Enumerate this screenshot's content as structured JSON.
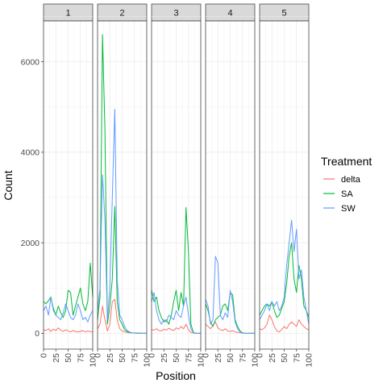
{
  "chart_data": {
    "type": "line",
    "xlabel": "Position",
    "ylabel": "Count",
    "xlim": [
      0,
      100
    ],
    "ylim": [
      -350,
      6900
    ],
    "x_ticks": [
      0,
      25,
      50,
      75,
      100
    ],
    "x_tick_labels": [
      "0",
      "25",
      "50",
      "75",
      "100"
    ],
    "y_ticks": [
      0,
      2000,
      4000,
      6000
    ],
    "y_tick_labels": [
      "0",
      "2000",
      "4000",
      "6000"
    ],
    "grid": true,
    "legend": {
      "title": "Treatment",
      "position": "right",
      "entries": [
        {
          "name": "delta",
          "color": "#F8766D"
        },
        {
          "name": "SA",
          "color": "#00BA38"
        },
        {
          "name": "SW",
          "color": "#619CFF"
        }
      ]
    },
    "facets": [
      {
        "label": "1",
        "series": [
          {
            "name": "delta",
            "x": [
              0,
              5,
              10,
              15,
              20,
              25,
              30,
              35,
              40,
              45,
              50,
              55,
              60,
              65,
              70,
              75,
              80,
              85,
              90,
              95,
              100
            ],
            "values": [
              80,
              60,
              100,
              40,
              90,
              60,
              120,
              70,
              40,
              80,
              50,
              30,
              60,
              40,
              30,
              40,
              60,
              30,
              50,
              40,
              30
            ]
          },
          {
            "name": "SA",
            "x": [
              0,
              5,
              10,
              15,
              20,
              25,
              30,
              35,
              40,
              45,
              50,
              55,
              60,
              65,
              70,
              75,
              80,
              85,
              90,
              95,
              100
            ],
            "values": [
              700,
              650,
              720,
              800,
              550,
              400,
              600,
              450,
              350,
              500,
              950,
              900,
              400,
              600,
              800,
              1000,
              650,
              500,
              700,
              1550,
              800
            ]
          },
          {
            "name": "SW",
            "x": [
              0,
              5,
              10,
              15,
              20,
              25,
              30,
              35,
              40,
              45,
              50,
              55,
              60,
              65,
              70,
              75,
              80,
              85,
              90,
              95,
              100
            ],
            "values": [
              500,
              600,
              400,
              800,
              500,
              400,
              350,
              300,
              450,
              650,
              500,
              350,
              300,
              400,
              650,
              500,
              300,
              350,
              250,
              400,
              500
            ]
          }
        ]
      },
      {
        "label": "2",
        "series": [
          {
            "name": "delta",
            "x": [
              0,
              5,
              10,
              15,
              20,
              25,
              30,
              35,
              40,
              45,
              50,
              55,
              60,
              65,
              70,
              75,
              80,
              85,
              90,
              95,
              100
            ],
            "values": [
              100,
              200,
              600,
              300,
              50,
              200,
              700,
              750,
              300,
              100,
              50,
              30,
              20,
              10,
              10,
              5,
              5,
              5,
              0,
              0,
              0
            ]
          },
          {
            "name": "SA",
            "x": [
              0,
              5,
              10,
              15,
              20,
              25,
              30,
              35,
              40,
              45,
              50,
              55,
              60,
              65,
              70,
              75,
              80,
              85,
              90,
              95,
              100
            ],
            "values": [
              300,
              800,
              6600,
              4500,
              200,
              600,
              1200,
              2800,
              700,
              300,
              200,
              80,
              40,
              20,
              10,
              5,
              5,
              0,
              0,
              0,
              0
            ]
          },
          {
            "name": "SW",
            "x": [
              0,
              5,
              10,
              15,
              20,
              25,
              30,
              35,
              40,
              45,
              50,
              55,
              60,
              65,
              70,
              75,
              80,
              85,
              90,
              95,
              100
            ],
            "values": [
              500,
              1000,
              3500,
              2500,
              300,
              1000,
              3000,
              4950,
              1200,
              400,
              300,
              150,
              60,
              30,
              10,
              5,
              0,
              0,
              0,
              0,
              0
            ]
          }
        ]
      },
      {
        "label": "3",
        "series": [
          {
            "name": "delta",
            "x": [
              0,
              5,
              10,
              15,
              20,
              25,
              30,
              35,
              40,
              45,
              50,
              55,
              60,
              65,
              70,
              75,
              80,
              85,
              90,
              95,
              100
            ],
            "values": [
              80,
              70,
              100,
              60,
              50,
              90,
              70,
              110,
              80,
              60,
              120,
              90,
              150,
              100,
              200,
              80,
              20,
              5,
              0,
              0,
              0
            ]
          },
          {
            "name": "SA",
            "x": [
              0,
              5,
              10,
              15,
              20,
              25,
              30,
              35,
              40,
              45,
              50,
              55,
              60,
              65,
              70,
              75,
              80,
              85,
              90,
              95,
              100
            ],
            "values": [
              950,
              700,
              800,
              500,
              350,
              250,
              300,
              200,
              400,
              700,
              950,
              500,
              900,
              600,
              2780,
              1800,
              200,
              20,
              0,
              0,
              0
            ]
          },
          {
            "name": "SW",
            "x": [
              0,
              5,
              10,
              15,
              20,
              25,
              30,
              35,
              40,
              45,
              50,
              55,
              60,
              65,
              70,
              75,
              80,
              85,
              90,
              95,
              100
            ],
            "values": [
              700,
              900,
              500,
              300,
              200,
              300,
              250,
              400,
              350,
              300,
              500,
              400,
              350,
              600,
              800,
              400,
              100,
              10,
              0,
              0,
              0
            ]
          }
        ]
      },
      {
        "label": "4",
        "series": [
          {
            "name": "delta",
            "x": [
              0,
              5,
              10,
              15,
              20,
              25,
              30,
              35,
              40,
              45,
              50,
              55,
              60,
              65,
              70,
              75,
              80,
              85,
              90,
              95,
              100
            ],
            "values": [
              200,
              150,
              100,
              180,
              250,
              120,
              80,
              60,
              100,
              50,
              40,
              60,
              30,
              20,
              10,
              5,
              0,
              0,
              0,
              0,
              0
            ]
          },
          {
            "name": "SA",
            "x": [
              0,
              5,
              10,
              15,
              20,
              25,
              30,
              35,
              40,
              45,
              50,
              55,
              60,
              65,
              70,
              75,
              80,
              85,
              90,
              95,
              100
            ],
            "values": [
              650,
              500,
              250,
              150,
              300,
              350,
              400,
              600,
              650,
              500,
              900,
              850,
              300,
              150,
              50,
              10,
              0,
              0,
              0,
              0,
              0
            ]
          },
          {
            "name": "SW",
            "x": [
              0,
              5,
              10,
              15,
              20,
              25,
              30,
              35,
              40,
              45,
              50,
              55,
              60,
              65,
              70,
              75,
              80,
              85,
              90,
              95,
              100
            ],
            "values": [
              750,
              600,
              200,
              300,
              1700,
              1550,
              400,
              300,
              450,
              350,
              950,
              700,
              250,
              100,
              30,
              5,
              0,
              0,
              0,
              0,
              0
            ]
          }
        ]
      },
      {
        "label": "5",
        "series": [
          {
            "name": "delta",
            "x": [
              0,
              5,
              10,
              15,
              20,
              25,
              30,
              35,
              40,
              45,
              50,
              55,
              60,
              65,
              70,
              75,
              80,
              85,
              90,
              95,
              100
            ],
            "values": [
              100,
              80,
              120,
              200,
              400,
              300,
              150,
              50,
              30,
              80,
              150,
              100,
              200,
              250,
              200,
              150,
              300,
              200,
              150,
              100,
              80
            ]
          },
          {
            "name": "SA",
            "x": [
              0,
              5,
              10,
              15,
              20,
              25,
              30,
              35,
              40,
              45,
              50,
              55,
              60,
              65,
              70,
              75,
              80,
              85,
              90,
              95,
              100
            ],
            "values": [
              400,
              500,
              600,
              650,
              600,
              700,
              500,
              350,
              400,
              550,
              700,
              1100,
              1700,
              2000,
              1200,
              900,
              1500,
              1200,
              600,
              500,
              350
            ]
          },
          {
            "name": "SW",
            "x": [
              0,
              5,
              10,
              15,
              20,
              25,
              30,
              35,
              40,
              45,
              50,
              55,
              60,
              65,
              70,
              75,
              80,
              85,
              90,
              95,
              100
            ],
            "values": [
              300,
              400,
              500,
              650,
              500,
              700,
              600,
              700,
              500,
              600,
              800,
              1500,
              2000,
              2500,
              1800,
              2300,
              1200,
              1400,
              800,
              500,
              200
            ]
          }
        ]
      }
    ]
  }
}
